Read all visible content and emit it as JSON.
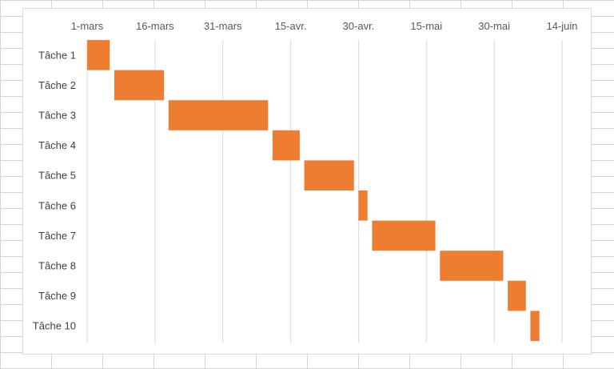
{
  "chart_data": {
    "type": "bar",
    "orientation": "horizontal-gantt",
    "x_axis_position": "top",
    "grid": true,
    "colors": {
      "bar": "#ED7D31",
      "gridline": "#D9D9D9",
      "text": "#595959"
    },
    "x_ticks": [
      {
        "label": "1-mars",
        "day": 0
      },
      {
        "label": "16-mars",
        "day": 15
      },
      {
        "label": "31-mars",
        "day": 30
      },
      {
        "label": "15-avr.",
        "day": 45
      },
      {
        "label": "30-avr.",
        "day": 60
      },
      {
        "label": "15-mai",
        "day": 75
      },
      {
        "label": "30-mai",
        "day": 90
      },
      {
        "label": "14-juin",
        "day": 105
      }
    ],
    "xlim": [
      0,
      105
    ],
    "categories": [
      "Tâche 1",
      "Tâche 2",
      "Tâche 3",
      "Tâche 4",
      "Tâche 5",
      "Tâche 6",
      "Tâche 7",
      "Tâche 8",
      "Tâche 9",
      "Tâche 10"
    ],
    "series": [
      {
        "start": [
          0,
          6,
          18,
          41,
          48,
          60,
          63,
          78,
          93,
          98
        ],
        "duration": [
          5,
          11,
          22,
          6,
          11,
          2,
          14,
          14,
          4,
          2
        ]
      }
    ]
  }
}
